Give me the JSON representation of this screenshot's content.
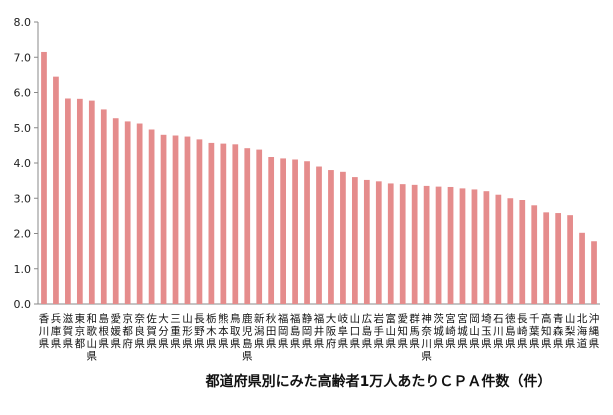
{
  "chart_data": {
    "type": "bar",
    "title": "都道府県別にみた高齢者1万人あたりＣＰＡ件数（件）",
    "ylim": [
      0,
      8
    ],
    "yticks": [
      "0.0",
      "1.0",
      "2.0",
      "3.0",
      "4.0",
      "5.0",
      "6.0",
      "7.0",
      "8.0"
    ],
    "grid": false,
    "legend": "none",
    "bar_color": "#e58c8c",
    "categories": [
      "香川県",
      "兵庫県",
      "滋賀県",
      "東京都",
      "和歌山県",
      "島根県",
      "愛媛県",
      "京都府",
      "奈良県",
      "佐賀県",
      "大分県",
      "三重県",
      "山形県",
      "長野県",
      "栃木県",
      "熊本県",
      "鳥取県",
      "鹿児島県",
      "新潟県",
      "秋田県",
      "福岡県",
      "福島県",
      "静岡県",
      "福井県",
      "大阪府",
      "岐阜県",
      "山口県",
      "広島県",
      "岩手県",
      "富山県",
      "愛知県",
      "群馬県",
      "神奈川県",
      "茨城県",
      "宮崎県",
      "宮城県",
      "岡山県",
      "埼玉県",
      "石川県",
      "徳島県",
      "長崎県",
      "千葉県",
      "高知県",
      "青森県",
      "山梨県",
      "北海道",
      "沖縄県"
    ],
    "values": [
      7.15,
      6.45,
      5.83,
      5.82,
      5.77,
      5.52,
      5.27,
      5.18,
      5.12,
      4.95,
      4.8,
      4.78,
      4.75,
      4.67,
      4.57,
      4.55,
      4.53,
      4.42,
      4.38,
      4.17,
      4.13,
      4.1,
      4.05,
      3.9,
      3.8,
      3.75,
      3.6,
      3.52,
      3.48,
      3.42,
      3.4,
      3.38,
      3.35,
      3.33,
      3.32,
      3.28,
      3.25,
      3.2,
      3.1,
      3.0,
      2.95,
      2.8,
      2.6,
      2.58,
      2.52,
      2.02,
      1.78
    ]
  }
}
